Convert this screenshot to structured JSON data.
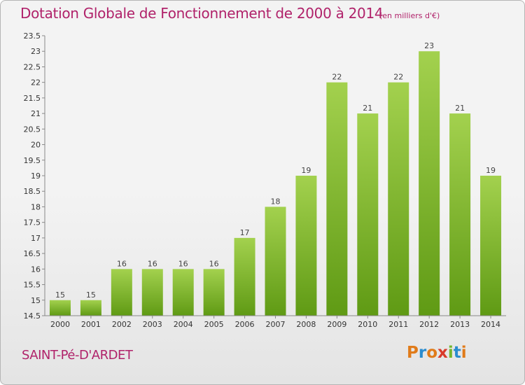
{
  "chart_data": {
    "type": "bar",
    "title": "Dotation Globale de Fonctionnement de 2000 à 2014",
    "subtitle": "(en milliers d'€)",
    "categories": [
      "2000",
      "2001",
      "2002",
      "2003",
      "2004",
      "2005",
      "2006",
      "2007",
      "2008",
      "2009",
      "2010",
      "2011",
      "2012",
      "2013",
      "2014"
    ],
    "values": [
      15,
      15,
      16,
      16,
      16,
      16,
      17,
      18,
      19,
      22,
      21,
      22,
      23,
      21,
      19
    ],
    "value_labels": [
      "15",
      "15",
      "16",
      "16",
      "16",
      "16",
      "17",
      "18",
      "19",
      "22",
      "21",
      "22",
      "23",
      "21",
      "19"
    ],
    "ylim": [
      14.5,
      23.5
    ],
    "yticks": [
      "14.5",
      "15",
      "15.5",
      "16",
      "16.5",
      "17",
      "17.5",
      "18",
      "18.5",
      "19",
      "19.5",
      "20",
      "20.5",
      "21",
      "21.5",
      "22",
      "22.5",
      "23",
      "23.5"
    ],
    "grid": false,
    "bar_colors": {
      "top": "#a3d14e",
      "bottom": "#5f9a14"
    }
  },
  "footer": {
    "commune": "SAINT-Pé-D'ARDET"
  },
  "logo": {
    "letters": [
      "P",
      "r",
      "o",
      "x",
      "i",
      "t",
      "i"
    ],
    "colors": [
      "#e07b1a",
      "#2a8ccf",
      "#e07b1a",
      "#d83a2a",
      "#74b62e",
      "#2a8ccf",
      "#e07b1a"
    ]
  }
}
